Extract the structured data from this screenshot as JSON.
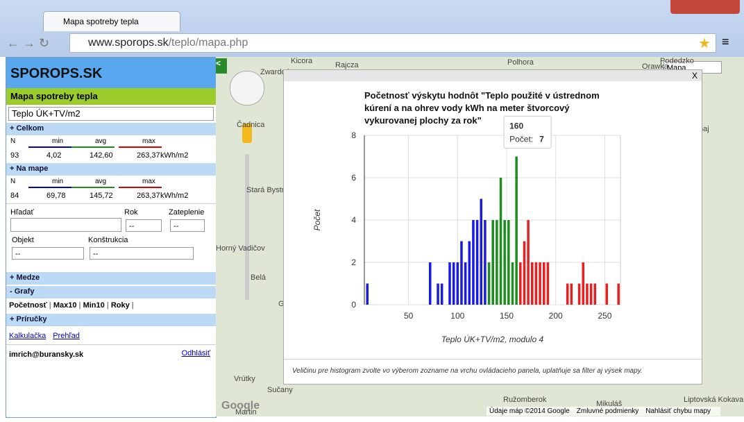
{
  "browser": {
    "tab_title": "Mapa spotreby tepla",
    "url_domain": "www.sporops.sk",
    "url_path": "/teplo/mapa.php"
  },
  "sidebar": {
    "logo": "SPOROPS.SK",
    "title": "Mapa spotreby tepla",
    "quantity": "Teplo ÚK+TV/m2",
    "total": {
      "header": "+ Celkom",
      "labels": [
        "N",
        "min",
        "avg",
        "max"
      ],
      "values": [
        "93",
        "4,02",
        "142,60",
        "263,37"
      ],
      "unit": "kWh/m2"
    },
    "on_map": {
      "header": "+ Na mape",
      "labels": [
        "N",
        "min",
        "avg",
        "max"
      ],
      "values": [
        "84",
        "69,78",
        "145,72",
        "263,37"
      ],
      "unit": "kWh/m2"
    },
    "search": "Hľadať",
    "year": "Rok",
    "insulation": "Zateplenie",
    "object": "Objekt",
    "construction": "Konštrukcia",
    "empty_option": "--",
    "limits": "+ Medze",
    "charts": "- Grafy",
    "chart_links": [
      "Početnosť",
      "Max10",
      "Min10",
      "Roky"
    ],
    "guides": "+ Príručky",
    "guide_links": [
      "Kalkulačka",
      "Prehľad"
    ],
    "user": "imrich@buransky.sk",
    "logout": "Odhlásiť"
  },
  "map": {
    "type": "Mapa",
    "labels": [
      "Kicora",
      "Rajcza",
      "Polhora",
      "Orawka",
      "Zwardoń",
      "Podedzko",
      "Čadnica",
      "Stará Bystrica",
      "Horný Vadičov",
      "Belá",
      "Gbeľany",
      "Vrútky",
      "Sučany",
      "Martin",
      "Ružomberok",
      "Dunaj",
      "Liptovská Kokava",
      "Mikuláš"
    ],
    "footer": [
      "Údaje máp ©2014 Google",
      "Zmluvné podmienky",
      "Nahlásiť chybu mapy"
    ]
  },
  "popup": {
    "close": "X",
    "note": "Veličinu pre histogram zvolte vo výberom zozname na vrchu ovládacieho panela, uplatňuje sa filter aj výsek mapy."
  },
  "chart_data": {
    "type": "histogram",
    "title": "Početnosť výskytu hodnôt \"Teplo použité v ústrednom kúrení a na ohrev vody kWh na meter štvorcový vykurovanej plochy za rok\"",
    "x_label": "Teplo ÚK+TV/m2, modulo 4",
    "y_label": "Počet",
    "xlim": [
      5,
      266
    ],
    "ylim": [
      0,
      8
    ],
    "xticks": [
      50,
      100,
      150,
      200,
      250
    ],
    "yticks": [
      0,
      2,
      4,
      6,
      8
    ],
    "grid": true,
    "series": [
      {
        "color": "#1a1ae6",
        "x": [
          8,
          72,
          80,
          84,
          92,
          96,
          100,
          104,
          108,
          112,
          116,
          120,
          124,
          128
        ],
        "values": [
          1,
          2,
          1,
          1,
          2,
          2,
          2,
          3,
          2,
          3,
          4,
          4,
          5,
          4
        ]
      },
      {
        "color": "#1e8c1e",
        "x": [
          132,
          136,
          140,
          144,
          148,
          152,
          156,
          160
        ],
        "values": [
          2,
          4,
          4,
          6,
          4,
          4,
          2,
          7
        ]
      },
      {
        "color": "#e62020",
        "x": [
          164,
          168,
          172,
          176,
          180,
          184,
          188,
          192,
          212,
          216,
          224,
          228,
          232,
          236,
          240,
          252,
          264
        ],
        "values": [
          2,
          3,
          4,
          2,
          2,
          2,
          2,
          2,
          1,
          1,
          1,
          2,
          1,
          1,
          1,
          1,
          1
        ]
      }
    ],
    "tooltip": {
      "x": 160,
      "label": "Počet:",
      "value": 7
    }
  }
}
